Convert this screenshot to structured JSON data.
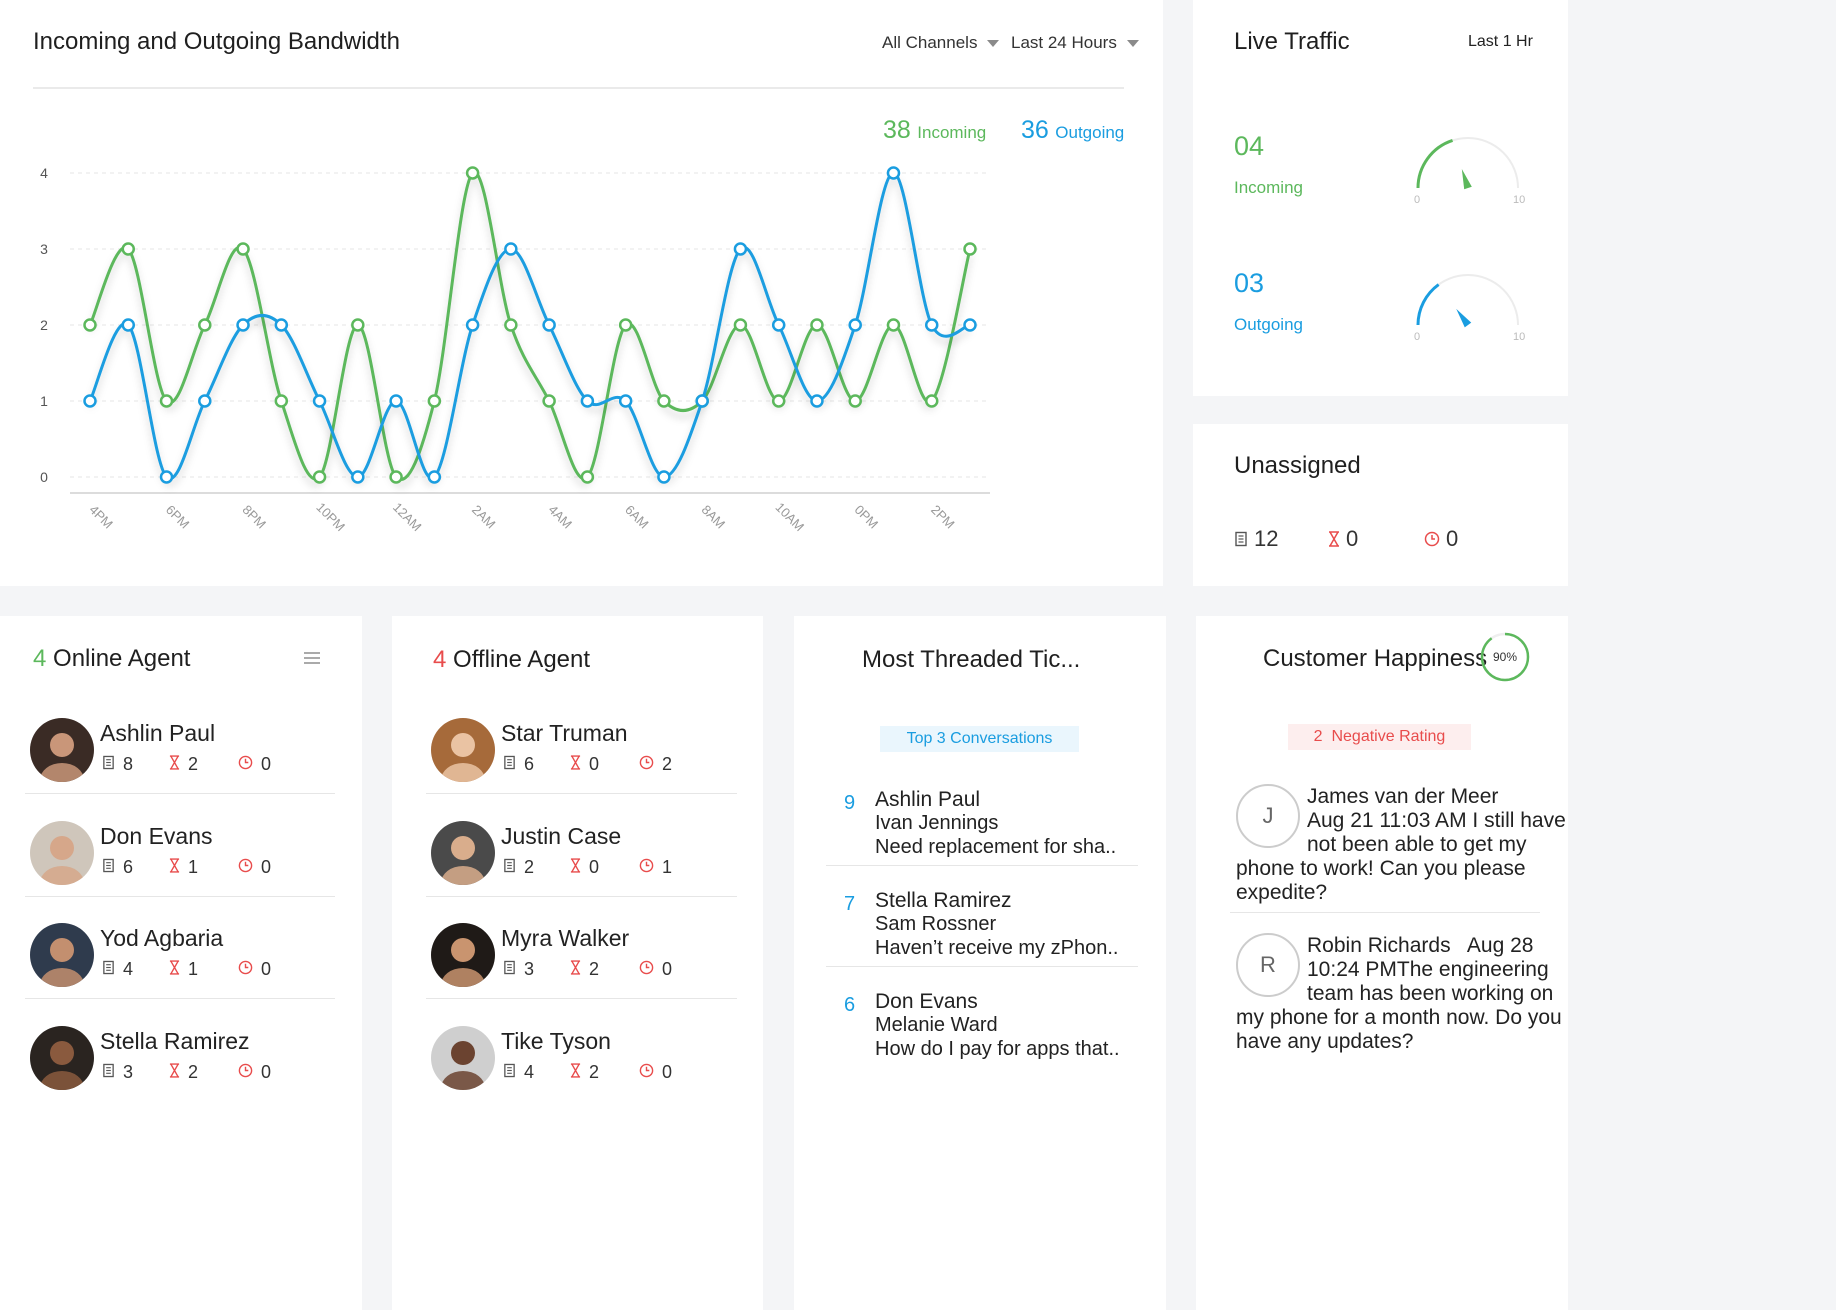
{
  "bandwidth": {
    "title": "Incoming and Outgoing Bandwidth",
    "channel_filter": "All Channels",
    "time_filter": "Last 24 Hours",
    "incoming_total": "38",
    "incoming_label": "Incoming",
    "outgoing_total": "36",
    "outgoing_label": "Outgoing",
    "colors": {
      "incoming": "#5cb85c",
      "outgoing": "#1a9de0"
    }
  },
  "chart_data": {
    "type": "line",
    "x_ticks": [
      "4PM",
      "6PM",
      "8PM",
      "10PM",
      "12AM",
      "2AM",
      "4AM",
      "6AM",
      "8AM",
      "10AM",
      "0PM",
      "2PM"
    ],
    "y_ticks": [
      "0",
      "1",
      "2",
      "3",
      "4"
    ],
    "ylim": [
      0,
      4
    ],
    "grid": true,
    "series": [
      {
        "name": "Incoming",
        "color": "#5cb85c",
        "values": [
          2,
          3,
          1,
          2,
          3,
          1,
          0,
          2,
          0,
          1,
          4,
          2,
          1,
          0,
          2,
          1,
          1,
          2,
          1,
          2,
          1,
          2,
          1,
          3
        ]
      },
      {
        "name": "Outgoing",
        "color": "#1a9de0",
        "values": [
          1,
          2,
          0,
          1,
          2,
          2,
          1,
          0,
          1,
          0,
          2,
          3,
          2,
          1,
          1,
          0,
          1,
          3,
          2,
          1,
          2,
          4,
          2,
          2
        ]
      }
    ]
  },
  "live_traffic": {
    "title": "Live Traffic",
    "period": "Last 1 Hr",
    "incoming_value": "04",
    "incoming_label": "Incoming",
    "outgoing_value": "03",
    "outgoing_label": "Outgoing",
    "gauge_min": "0",
    "gauge_max": "10",
    "incoming_level": 4,
    "outgoing_level": 3
  },
  "unassigned": {
    "title": "Unassigned",
    "tickets": "12",
    "pending": "0",
    "overdue": "0"
  },
  "online": {
    "count": "4",
    "title": "Online Agent",
    "agents": [
      {
        "name": "Ashlin Paul",
        "tickets": "8",
        "pending": "2",
        "overdue": "0"
      },
      {
        "name": "Don Evans",
        "tickets": "6",
        "pending": "1",
        "overdue": "0"
      },
      {
        "name": "Yod Agbaria",
        "tickets": "4",
        "pending": "1",
        "overdue": "0"
      },
      {
        "name": "Stella Ramirez",
        "tickets": "3",
        "pending": "2",
        "overdue": "0"
      }
    ]
  },
  "offline": {
    "count": "4",
    "title": "Offline Agent",
    "agents": [
      {
        "name": "Star Truman",
        "tickets": "6",
        "pending": "0",
        "overdue": "2"
      },
      {
        "name": "Justin Case",
        "tickets": "2",
        "pending": "0",
        "overdue": "1"
      },
      {
        "name": "Myra Walker",
        "tickets": "3",
        "pending": "2",
        "overdue": "0"
      },
      {
        "name": "Tike Tyson",
        "tickets": "4",
        "pending": "2",
        "overdue": "0"
      }
    ]
  },
  "threaded": {
    "title": "Most Threaded Tic...",
    "badge": "Top 3 Conversations",
    "items": [
      {
        "count": "9",
        "agent": "Ashlin Paul",
        "customer": "Ivan Jennings",
        "subject": "Need replacement for sha.."
      },
      {
        "count": "7",
        "agent": "Stella Ramirez",
        "customer": "Sam Rossner",
        "subject": "Haven’t receive my zPhon.."
      },
      {
        "count": "6",
        "agent": "Don Evans",
        "customer": "Melanie Ward",
        "subject": "How do I pay for apps that.."
      }
    ]
  },
  "happiness": {
    "title": "Customer Happiness",
    "percent": "90%",
    "percent_value": 0.9,
    "negative_count": "2",
    "negative_label": "Negative Rating",
    "ratings": [
      {
        "initial": "J",
        "line1": "James van der Meer",
        "line2": "Aug 21 11:03 AM I still have",
        "line3": "not been able to get my",
        "line4": "phone to work! Can you please",
        "line5": "expedite?"
      },
      {
        "initial": "R",
        "line1": "Robin Richards   Aug 28",
        "line2": "10:24 PMThe engineering",
        "line3": "team has been working on",
        "line4": "my phone for a month now. Do you",
        "line5": "have any updates?"
      }
    ]
  }
}
